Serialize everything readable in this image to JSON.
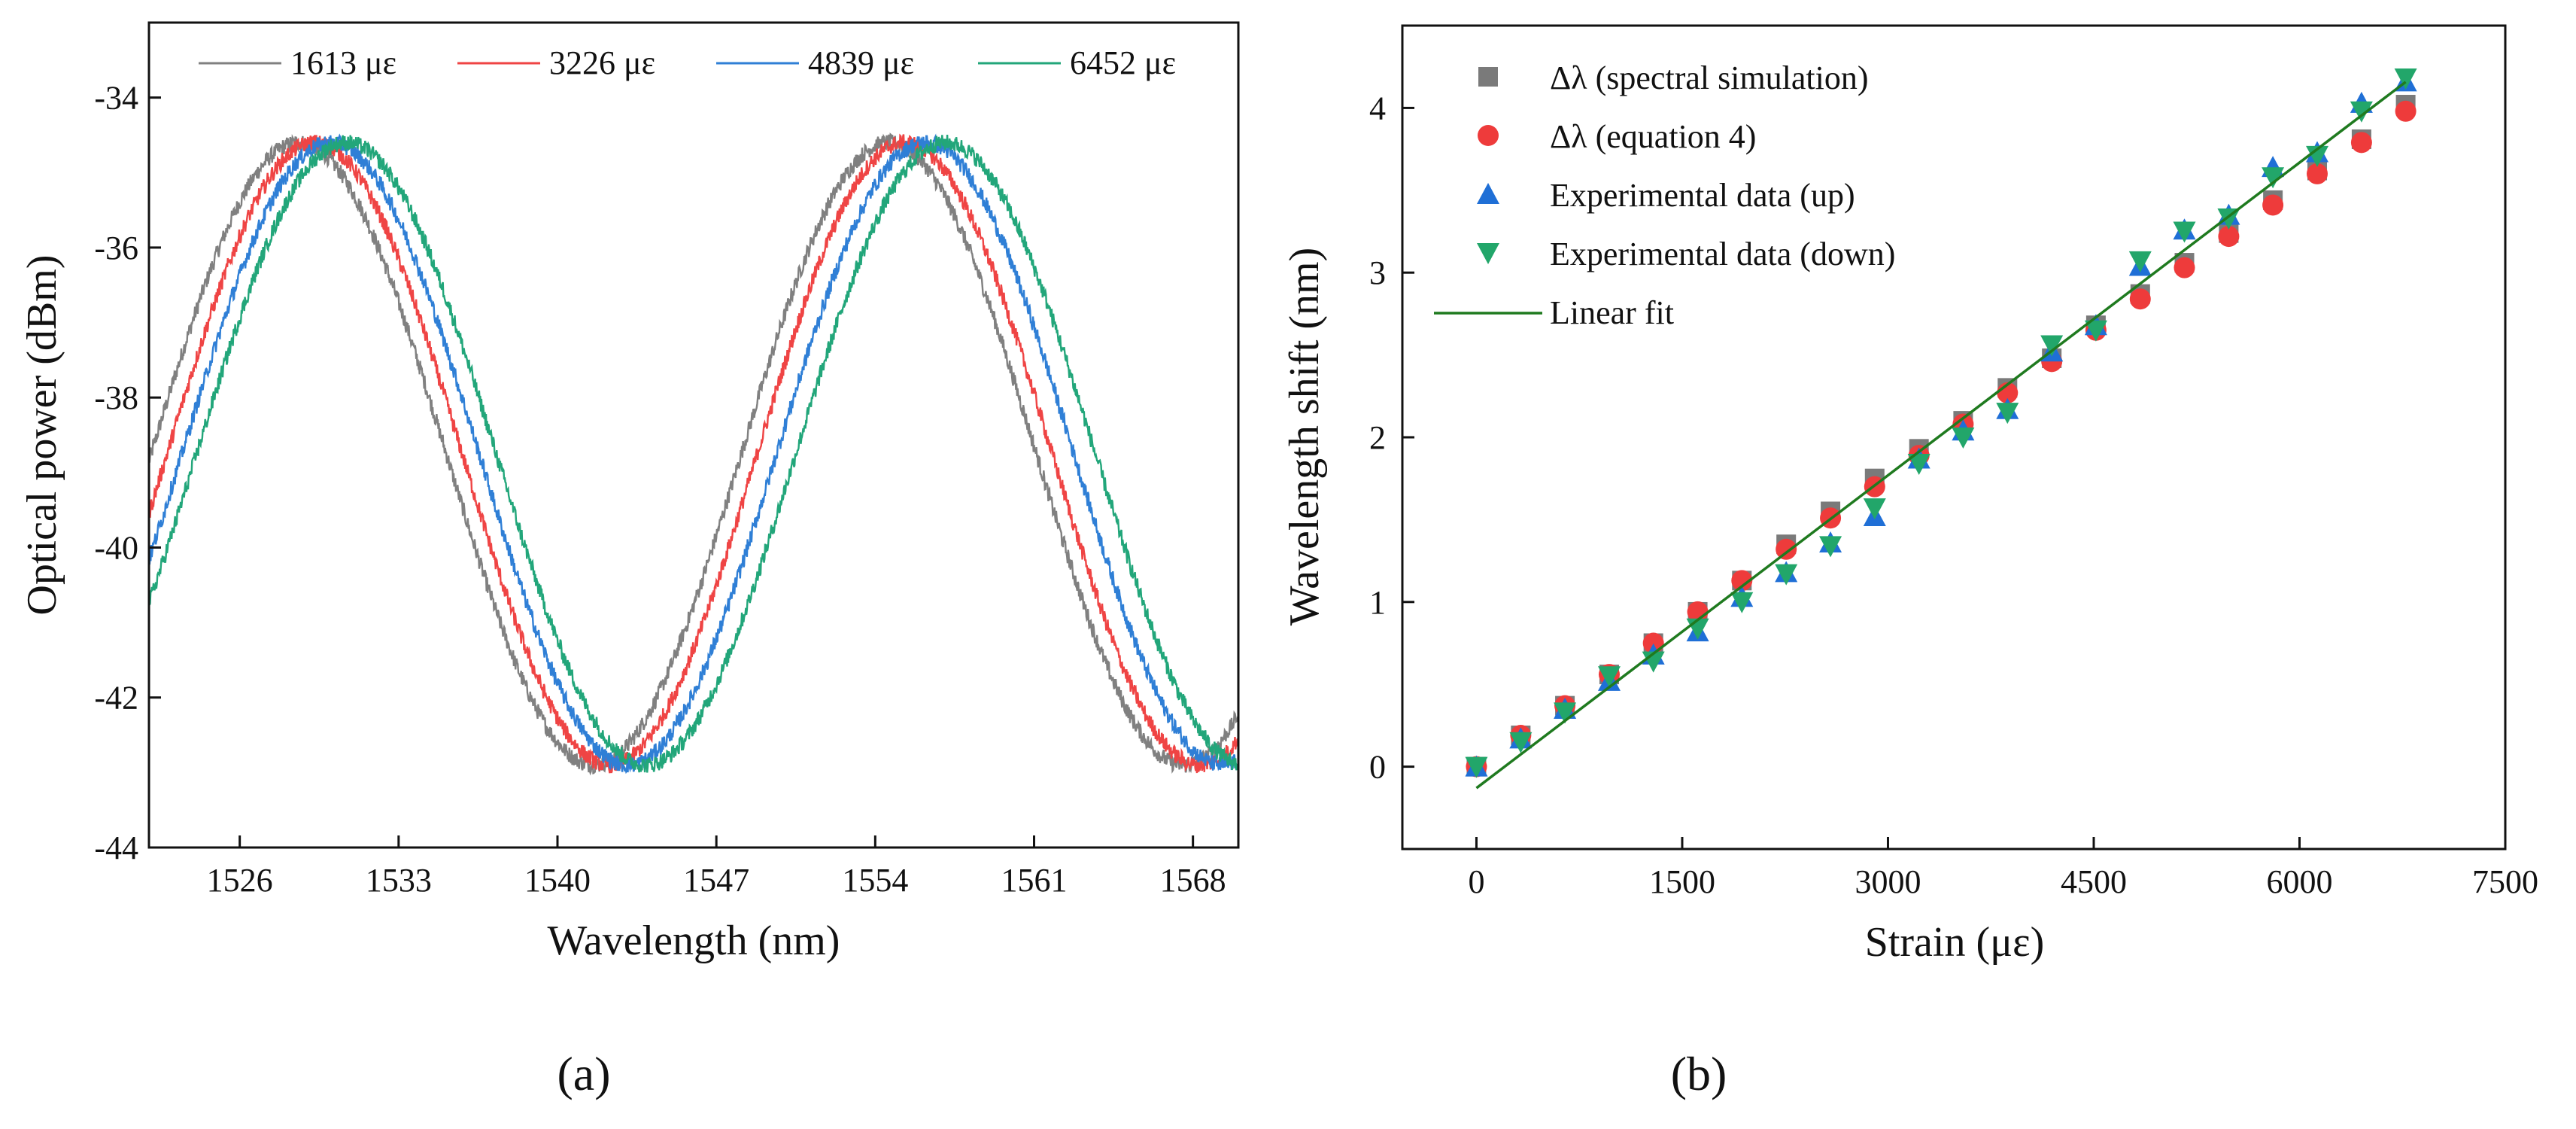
{
  "chart_data": [
    {
      "type": "line",
      "panel": "a",
      "xlabel": "Wavelength (nm)",
      "ylabel": "Optical power (dBm)",
      "xlim": [
        1522,
        1570
      ],
      "ylim": [
        -44,
        -33
      ],
      "xticks": [
        1526,
        1533,
        1540,
        1547,
        1554,
        1561,
        1568
      ],
      "yticks": [
        -44,
        -42,
        -40,
        -38,
        -36,
        -34
      ],
      "legend_position": "top",
      "series": [
        {
          "name": "1613 με",
          "color": "#808080",
          "peaks": [
            1528.6,
            1555.0
          ],
          "dips": [
            1541.6,
            1568.6
          ],
          "max": -34.6,
          "min": -42.9
        },
        {
          "name": "3226 με",
          "color": "#ef4444",
          "peaks": [
            1529.3,
            1555.7
          ],
          "dips": [
            1542.3,
            1569.3
          ],
          "max": -34.6,
          "min": -42.9
        },
        {
          "name": "4839 με",
          "color": "#2f7fd6",
          "peaks": [
            1530.0,
            1556.4
          ],
          "dips": [
            1543.1,
            1570.0
          ],
          "max": -34.6,
          "min": -42.9
        },
        {
          "name": "6452 με",
          "color": "#22a67a",
          "peaks": [
            1530.7,
            1557.1
          ],
          "dips": [
            1543.9,
            1570.7
          ],
          "max": -34.6,
          "min": -42.9
        }
      ]
    },
    {
      "type": "scatter",
      "panel": "b",
      "xlabel": "Strain (με)",
      "ylabel": "Wavelength shift (nm)",
      "xlim": [
        -540,
        7500
      ],
      "ylim": [
        -0.5,
        4.5
      ],
      "xticks": [
        0,
        1500,
        3000,
        4500,
        6000,
        7500
      ],
      "yticks": [
        0,
        1,
        2,
        3,
        4
      ],
      "legend_position": "top-left",
      "x": [
        0,
        323,
        645,
        968,
        1290,
        1613,
        1935,
        2258,
        2581,
        2903,
        3226,
        3548,
        3871,
        4194,
        4516,
        4839,
        5161,
        5484,
        5806,
        6129,
        6452,
        6774
      ],
      "series": [
        {
          "name": "Δλ (spectral simulation)",
          "marker": "square",
          "color": "#7a7a7a",
          "values": [
            0,
            0.19,
            0.37,
            0.56,
            0.75,
            0.94,
            1.13,
            1.35,
            1.55,
            1.75,
            1.93,
            2.1,
            2.3,
            2.48,
            2.68,
            2.87,
            3.06,
            3.24,
            3.44,
            3.62,
            3.81,
            4.02
          ]
        },
        {
          "name": "Δλ (equation 4)",
          "marker": "circle",
          "color": "#ee3b3b",
          "values": [
            0,
            0.19,
            0.37,
            0.56,
            0.75,
            0.94,
            1.13,
            1.32,
            1.51,
            1.7,
            1.89,
            2.08,
            2.27,
            2.46,
            2.65,
            2.84,
            3.03,
            3.22,
            3.41,
            3.6,
            3.79,
            3.98
          ]
        },
        {
          "name": "Experimental data (up)",
          "marker": "triangle-up",
          "color": "#1f6fd6",
          "values": [
            0,
            0.17,
            0.35,
            0.52,
            0.68,
            0.82,
            1.03,
            1.18,
            1.36,
            1.52,
            1.87,
            2.04,
            2.17,
            2.52,
            2.68,
            3.04,
            3.26,
            3.35,
            3.64,
            3.73,
            4.03,
            4.16
          ]
        },
        {
          "name": "Experimental data (down)",
          "marker": "triangle-down",
          "color": "#22a66a",
          "values": [
            0,
            0.15,
            0.33,
            0.55,
            0.64,
            0.84,
            1.0,
            1.17,
            1.34,
            1.57,
            1.84,
            2.0,
            2.15,
            2.56,
            2.65,
            3.07,
            3.25,
            3.33,
            3.58,
            3.71,
            3.98,
            4.18
          ]
        }
      ],
      "fit": {
        "name": "Linear fit",
        "color": "#1f7a1f",
        "slope": 0.000633,
        "intercept": -0.13,
        "x_range": [
          0,
          6774
        ]
      }
    }
  ],
  "panel_labels": {
    "a": "(a)",
    "b": "(b)"
  }
}
